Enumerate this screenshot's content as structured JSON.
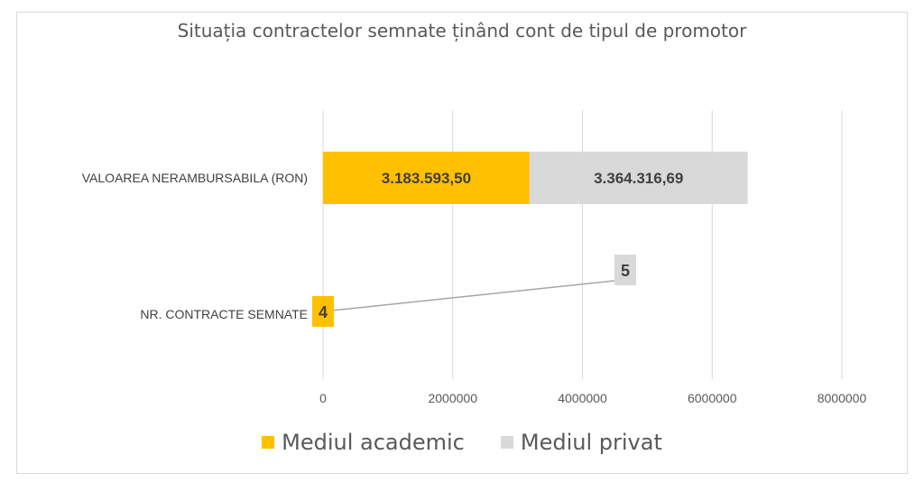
{
  "chart_data": {
    "type": "bar",
    "orientation": "horizontal",
    "stacked": true,
    "title": "Situația contractelor semnate ținând cont de tipul de promotor",
    "categories": [
      "VALOAREA NERAMBURSABILA (RON)",
      "NR. CONTRACTE SEMNATE"
    ],
    "series": [
      {
        "name": "Mediul academic",
        "color": "#FFC000",
        "values": [
          3183593.5,
          4
        ],
        "labels": [
          "3.183.593,50",
          "4"
        ]
      },
      {
        "name": "Mediul privat",
        "color": "#D9D9D9",
        "values": [
          3364316.69,
          5
        ],
        "labels": [
          "3.364.316,69",
          "5"
        ]
      }
    ],
    "xlim": [
      0,
      8000000
    ],
    "xticks": [
      0,
      2000000,
      4000000,
      6000000,
      8000000
    ],
    "xtick_labels": [
      "0",
      "2000000",
      "4000000",
      "6000000",
      "8000000"
    ],
    "grid": true,
    "legend_position": "bottom"
  }
}
